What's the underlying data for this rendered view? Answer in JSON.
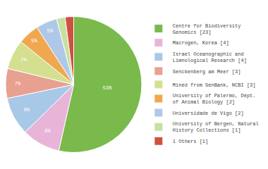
{
  "chart_data": {
    "type": "pie",
    "categories": [
      "Centre for Biodiversity\nGenomics [23]",
      "Macrogen, Korea [4]",
      "Israel Oceanographic and\nLimnological Research [4]",
      "Senckenberg am Meer [3]",
      "Mined from GenBank, NCBI [3]",
      "University of Palermo, Dept.\nof Animal Biology [2]",
      "Universidade de Vigo [2]",
      "University of Bergen, Natural\nHistory Collections [1]",
      "1 Others [1]"
    ],
    "values": [
      53,
      9,
      9,
      7,
      7,
      5,
      5,
      2,
      2
    ],
    "value_labels": [
      "53%",
      "9%",
      "9%",
      "7%",
      "7%",
      "5%",
      "5%",
      null,
      null
    ],
    "colors": [
      "#7aba4c",
      "#e8b4d8",
      "#a8c8e8",
      "#e8a090",
      "#d4e090",
      "#f0a850",
      "#b0c8e8",
      "#c8e0a0",
      "#d05040"
    ],
    "data_labels": true,
    "legend": "right"
  }
}
